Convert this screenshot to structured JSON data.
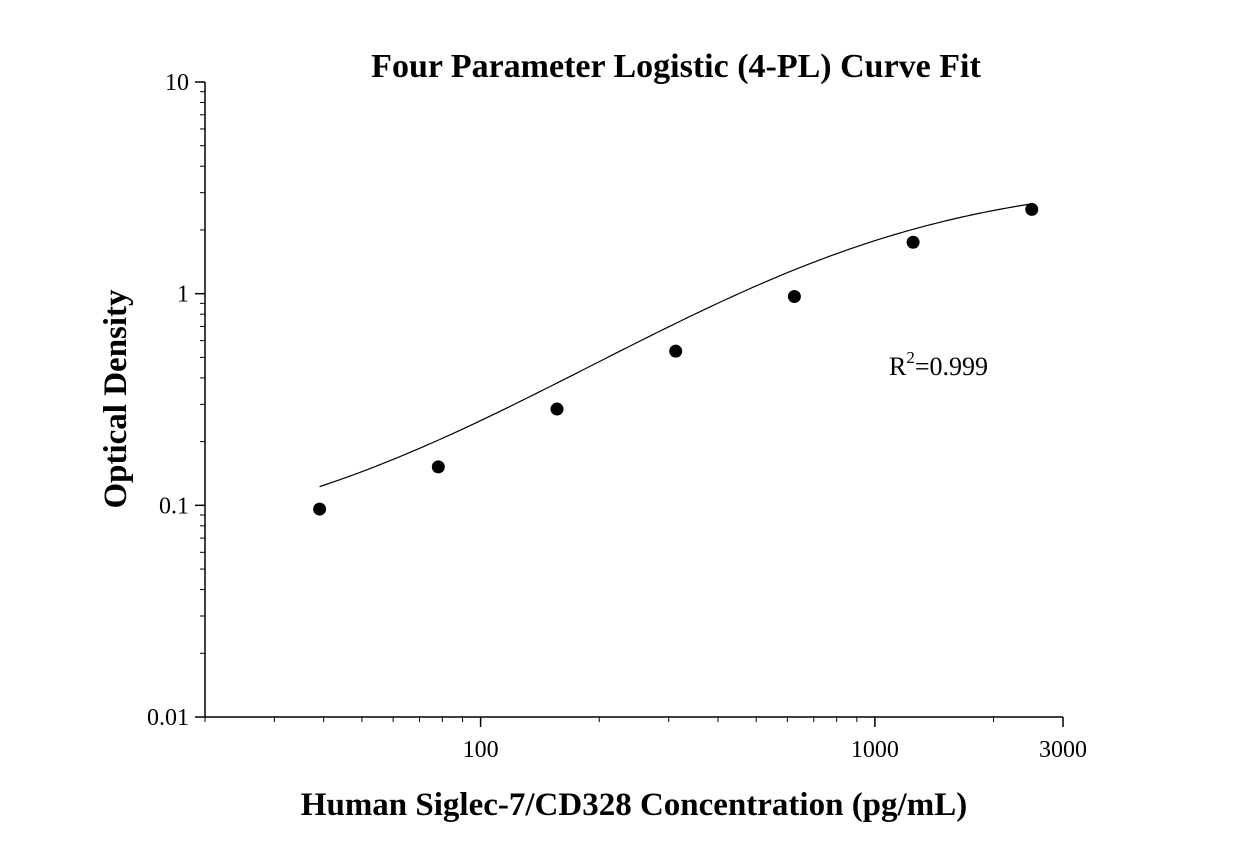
{
  "chart_data": {
    "type": "scatter",
    "title": "Four Parameter Logistic (4-PL) Curve Fit",
    "xlabel": "Human Siglec-7/CD328 Concentration (pg/mL)",
    "ylabel": "Optical Density",
    "x_scale": "log",
    "y_scale": "log",
    "xlim": [
      20,
      3000
    ],
    "ylim": [
      0.01,
      10
    ],
    "x_ticks": [
      {
        "value": 100,
        "label": "100"
      },
      {
        "value": 1000,
        "label": "1000"
      },
      {
        "value": 3000,
        "label": "3000"
      }
    ],
    "y_ticks": [
      {
        "value": 0.01,
        "label": "0.01"
      },
      {
        "value": 0.1,
        "label": "0.1"
      },
      {
        "value": 1,
        "label": "1"
      },
      {
        "value": 10,
        "label": "10"
      }
    ],
    "points": [
      {
        "x": 39.0625,
        "y": 0.096
      },
      {
        "x": 78.125,
        "y": 0.152
      },
      {
        "x": 156.25,
        "y": 0.285
      },
      {
        "x": 312.5,
        "y": 0.535
      },
      {
        "x": 625,
        "y": 0.97
      },
      {
        "x": 1250,
        "y": 1.75
      },
      {
        "x": 2500,
        "y": 2.5
      }
    ],
    "fit_curve": {
      "model": "4-PL",
      "A": 0.06,
      "B": 1.23,
      "C": 1000,
      "D": 3.5,
      "x_range": [
        39.0625,
        2500
      ]
    },
    "annotation": {
      "base": "R",
      "sup": "2",
      "rest": "=0.999"
    },
    "grid": false,
    "legend": "none",
    "marker_color": "#000000",
    "curve_color": "#000000"
  }
}
